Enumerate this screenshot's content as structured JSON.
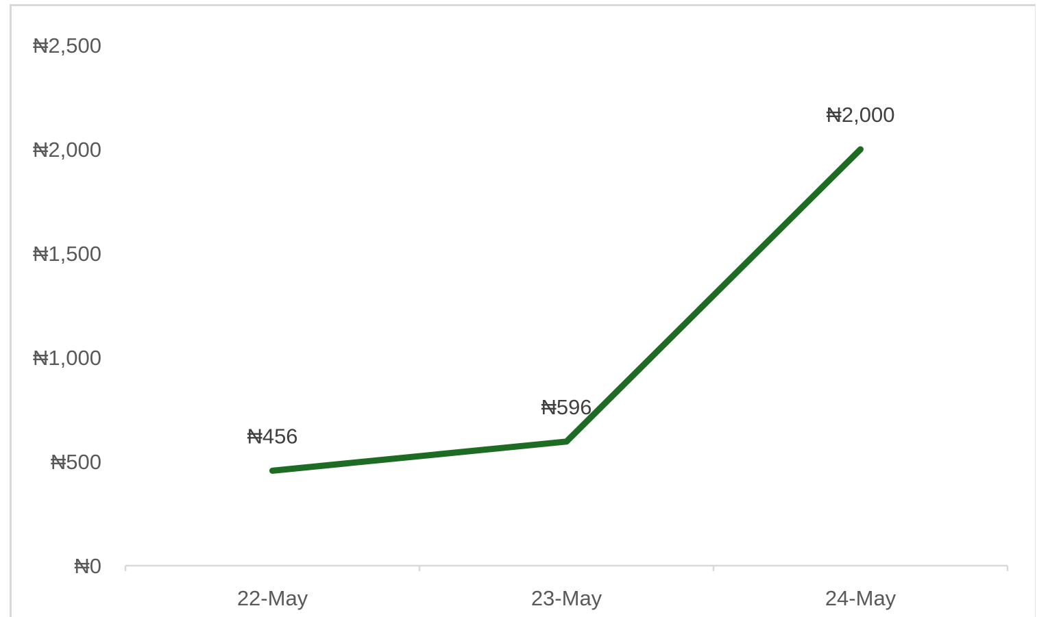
{
  "chart_data": {
    "type": "line",
    "title": "",
    "xlabel": "",
    "ylabel": "",
    "categories": [
      "22-May",
      "23-May",
      "24-May"
    ],
    "series": [
      {
        "values": [
          456,
          596,
          2000
        ],
        "data_labels": [
          "₦456",
          "₦596",
          "₦2,000"
        ],
        "color": "#1e6b24"
      }
    ],
    "ylim": [
      0,
      2500
    ],
    "y_ticks": [
      0,
      500,
      1000,
      1500,
      2000,
      2500
    ],
    "y_tick_labels": [
      "₦0",
      "₦500",
      "₦1,000",
      "₦1,500",
      "₦2,000",
      "₦2,500"
    ],
    "grid": false,
    "legend": "none",
    "axis_color": "#d9d9d9",
    "text_color": "#595959"
  }
}
